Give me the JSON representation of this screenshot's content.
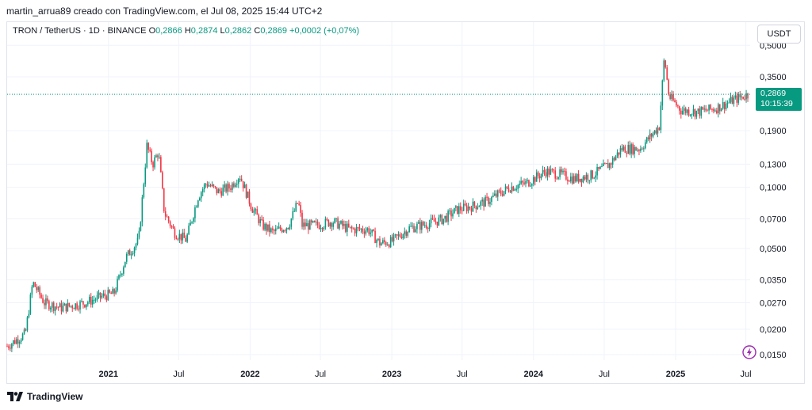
{
  "header": {
    "text": "martin_arrua89 creado con TradingView.com, el Jul 08, 2025 15:44 UTC+2"
  },
  "legend": {
    "symbol": "TRON / TetherUS · 1D · BINANCE",
    "o_label": "O",
    "o_value": "0,2866",
    "h_label": "H",
    "h_value": "0,2874",
    "l_label": "L",
    "l_value": "0,2862",
    "c_label": "C",
    "c_value": "0,2869",
    "change": "+0,0002 (+0,07%)"
  },
  "currency_button": "USDT",
  "price_tag": {
    "price": "0,2869",
    "countdown": "10:15:39"
  },
  "brand": {
    "name": "TradingView"
  },
  "colors": {
    "up": "#089981",
    "down": "#f23645",
    "grid": "#f0f3fa",
    "tag": "#089981",
    "bolt": "#9c27b0"
  },
  "icons": [
    "tradingview-logo-icon",
    "lightning-icon"
  ],
  "chart_data": {
    "type": "candlestick",
    "scale": "log",
    "x_axis": {
      "start": "2020-04-15",
      "end": "2025-07-08",
      "ticks": [
        {
          "date": "2021-01-01",
          "label": "2021",
          "year": true
        },
        {
          "date": "2021-07-01",
          "label": "Jul",
          "year": false
        },
        {
          "date": "2022-01-01",
          "label": "2022",
          "year": true
        },
        {
          "date": "2022-07-01",
          "label": "Jul",
          "year": false
        },
        {
          "date": "2023-01-01",
          "label": "2023",
          "year": true
        },
        {
          "date": "2023-07-01",
          "label": "Jul",
          "year": false
        },
        {
          "date": "2024-01-01",
          "label": "2024",
          "year": true
        },
        {
          "date": "2024-07-01",
          "label": "Jul",
          "year": false
        },
        {
          "date": "2025-01-01",
          "label": "2025",
          "year": true
        },
        {
          "date": "2025-07-01",
          "label": "Jul",
          "year": false
        }
      ]
    },
    "y_axis": {
      "ticks": [
        {
          "value": 0.015,
          "label": "0,0150"
        },
        {
          "value": 0.02,
          "label": "0,0200"
        },
        {
          "value": 0.027,
          "label": "0,0270"
        },
        {
          "value": 0.035,
          "label": "0,0350"
        },
        {
          "value": 0.05,
          "label": "0,0500"
        },
        {
          "value": 0.07,
          "label": "0,0700"
        },
        {
          "value": 0.1,
          "label": "0,1000"
        },
        {
          "value": 0.13,
          "label": "0,1300"
        },
        {
          "value": 0.19,
          "label": "0,1900"
        },
        {
          "value": 0.35,
          "label": "0,3500"
        },
        {
          "value": 0.5,
          "label": "0,5000"
        }
      ]
    },
    "last_price": 0.2869,
    "close_path": [
      {
        "date": "2020-04-15",
        "price": 0.0165
      },
      {
        "date": "2020-06-01",
        "price": 0.019
      },
      {
        "date": "2020-06-20",
        "price": 0.034
      },
      {
        "date": "2020-07-20",
        "price": 0.027
      },
      {
        "date": "2020-09-01",
        "price": 0.0255
      },
      {
        "date": "2020-11-01",
        "price": 0.027
      },
      {
        "date": "2020-12-15",
        "price": 0.029
      },
      {
        "date": "2021-01-15",
        "price": 0.03
      },
      {
        "date": "2021-02-15",
        "price": 0.045
      },
      {
        "date": "2021-03-20",
        "price": 0.055
      },
      {
        "date": "2021-04-10",
        "price": 0.16
      },
      {
        "date": "2021-04-25",
        "price": 0.13
      },
      {
        "date": "2021-05-10",
        "price": 0.15
      },
      {
        "date": "2021-05-25",
        "price": 0.075
      },
      {
        "date": "2021-06-20",
        "price": 0.06
      },
      {
        "date": "2021-07-20",
        "price": 0.055
      },
      {
        "date": "2021-08-20",
        "price": 0.09
      },
      {
        "date": "2021-09-10",
        "price": 0.105
      },
      {
        "date": "2021-10-10",
        "price": 0.095
      },
      {
        "date": "2021-11-10",
        "price": 0.1
      },
      {
        "date": "2021-12-05",
        "price": 0.115
      },
      {
        "date": "2022-01-05",
        "price": 0.08
      },
      {
        "date": "2022-02-01",
        "price": 0.065
      },
      {
        "date": "2022-03-01",
        "price": 0.06
      },
      {
        "date": "2022-04-10",
        "price": 0.065
      },
      {
        "date": "2022-05-05",
        "price": 0.085
      },
      {
        "date": "2022-05-15",
        "price": 0.065
      },
      {
        "date": "2022-06-20",
        "price": 0.065
      },
      {
        "date": "2022-08-01",
        "price": 0.068
      },
      {
        "date": "2022-09-15",
        "price": 0.062
      },
      {
        "date": "2022-11-01",
        "price": 0.062
      },
      {
        "date": "2022-12-01",
        "price": 0.053
      },
      {
        "date": "2022-12-31",
        "price": 0.054
      },
      {
        "date": "2023-02-15",
        "price": 0.063
      },
      {
        "date": "2023-04-01",
        "price": 0.066
      },
      {
        "date": "2023-05-15",
        "price": 0.07
      },
      {
        "date": "2023-06-20",
        "price": 0.078
      },
      {
        "date": "2023-07-20",
        "price": 0.08
      },
      {
        "date": "2023-09-01",
        "price": 0.085
      },
      {
        "date": "2023-11-01",
        "price": 0.1
      },
      {
        "date": "2023-12-15",
        "price": 0.105
      },
      {
        "date": "2024-02-01",
        "price": 0.12
      },
      {
        "date": "2024-03-15",
        "price": 0.115
      },
      {
        "date": "2024-04-15",
        "price": 0.11
      },
      {
        "date": "2024-06-01",
        "price": 0.115
      },
      {
        "date": "2024-07-15",
        "price": 0.13
      },
      {
        "date": "2024-08-15",
        "price": 0.155
      },
      {
        "date": "2024-10-01",
        "price": 0.155
      },
      {
        "date": "2024-11-20",
        "price": 0.2
      },
      {
        "date": "2024-12-03",
        "price": 0.44
      },
      {
        "date": "2024-12-15",
        "price": 0.28
      },
      {
        "date": "2025-01-15",
        "price": 0.24
      },
      {
        "date": "2025-03-01",
        "price": 0.235
      },
      {
        "date": "2025-04-15",
        "price": 0.245
      },
      {
        "date": "2025-06-01",
        "price": 0.27
      },
      {
        "date": "2025-07-08",
        "price": 0.2869
      }
    ]
  }
}
